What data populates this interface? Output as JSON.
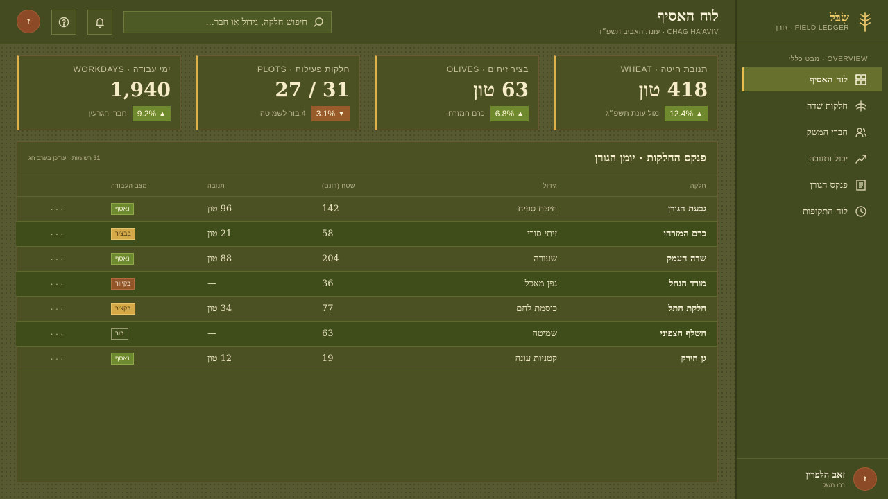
{
  "sidebar": {
    "brand_name": "שִׂבֹּל",
    "brand_sub": "FIELD LEDGER · גורן",
    "section_label": "OVERVIEW · מבט כללי",
    "items": [
      {
        "label": "לוח האסיף",
        "icon": "dashboard-icon",
        "active": true
      },
      {
        "label": "חלקות שדה",
        "icon": "wheat-icon",
        "active": false
      },
      {
        "label": "חברי המשק",
        "icon": "members-icon",
        "active": false
      },
      {
        "label": "יבול ותנובה",
        "icon": "trend-icon",
        "active": false
      },
      {
        "label": "פנקס הגורן",
        "icon": "ledger-icon",
        "active": false
      },
      {
        "label": "לוח התקופות",
        "icon": "clock-icon",
        "active": false
      }
    ],
    "user": {
      "name": "זאב הלפרין",
      "role": "רכז משק",
      "initial": "ז"
    }
  },
  "topbar": {
    "title": "לוח האסיף",
    "subtitle": "CHAG HA'AVIV · עונת האביב תשפ״ד",
    "search_placeholder": "חיפוש חלקה, גידול או חבר...",
    "avatar_initial": "ז"
  },
  "cards": [
    {
      "label": "תנובת חיטה · WHEAT",
      "value": "418 טון",
      "delta": "12.4%",
      "direction": "up",
      "note": "מול עונת תשפ״ג"
    },
    {
      "label": "בציר זיתים · OLIVES",
      "value": "63 טון",
      "delta": "6.8%",
      "direction": "up",
      "note": "כרם המזרחי"
    },
    {
      "label": "חלקות פעילות · PLOTS",
      "value": "27 / 31",
      "delta": "3.1%",
      "direction": "down",
      "note": "4 בור לשמיטה"
    },
    {
      "label": "ימי עבודה · WORKDAYS",
      "value": "1,940",
      "delta": "9.2%",
      "direction": "up",
      "note": "חברי הגרעין"
    }
  ],
  "panel": {
    "title": "פנקס החלקות · יומן הגורן",
    "meta": "31 רשומות · עודכן בערב חג",
    "columns": [
      "חלקה",
      "גידול",
      "שטח (דונם)",
      "תנובה",
      "מצב העבודה",
      ""
    ],
    "rows": [
      {
        "plot": "גבעת הגורן",
        "crop": "חיטת ספיח",
        "area": "142",
        "yield": "96 טון",
        "status": "נאסף",
        "status_type": "collected",
        "menu": "···"
      },
      {
        "plot": "כרם המזרחי",
        "crop": "זיתי סורי",
        "area": "58",
        "yield": "21 טון",
        "status": "בבציר",
        "status_type": "harvest",
        "menu": "···"
      },
      {
        "plot": "שדה העמק",
        "crop": "שעורה",
        "area": "204",
        "yield": "88 טון",
        "status": "נאסף",
        "status_type": "collected",
        "menu": "···"
      },
      {
        "plot": "מורד הנחל",
        "crop": "גפן מאכל",
        "area": "36",
        "yield": "—",
        "status": "בקיוור",
        "status_type": "hoeing",
        "menu": "···"
      },
      {
        "plot": "חלקת התל",
        "crop": "כוסמת לחם",
        "area": "77",
        "yield": "34 טון",
        "status": "בקציר",
        "status_type": "harvest",
        "menu": "···"
      },
      {
        "plot": "השלף הצפוני",
        "crop": "שמיטה",
        "area": "63",
        "yield": "—",
        "status": "בור",
        "status_type": "fallow",
        "menu": "···"
      },
      {
        "plot": "גן הירק",
        "crop": "קטניות עונה",
        "area": "19",
        "yield": "12 טון",
        "status": "נאסף",
        "status_type": "collected",
        "menu": "···"
      }
    ]
  },
  "colors": {
    "accent": "#e0b14a",
    "bg": "#575a30",
    "sidebar": "#424a20",
    "up": "#6f8a2e",
    "down": "#9a5b2a"
  }
}
